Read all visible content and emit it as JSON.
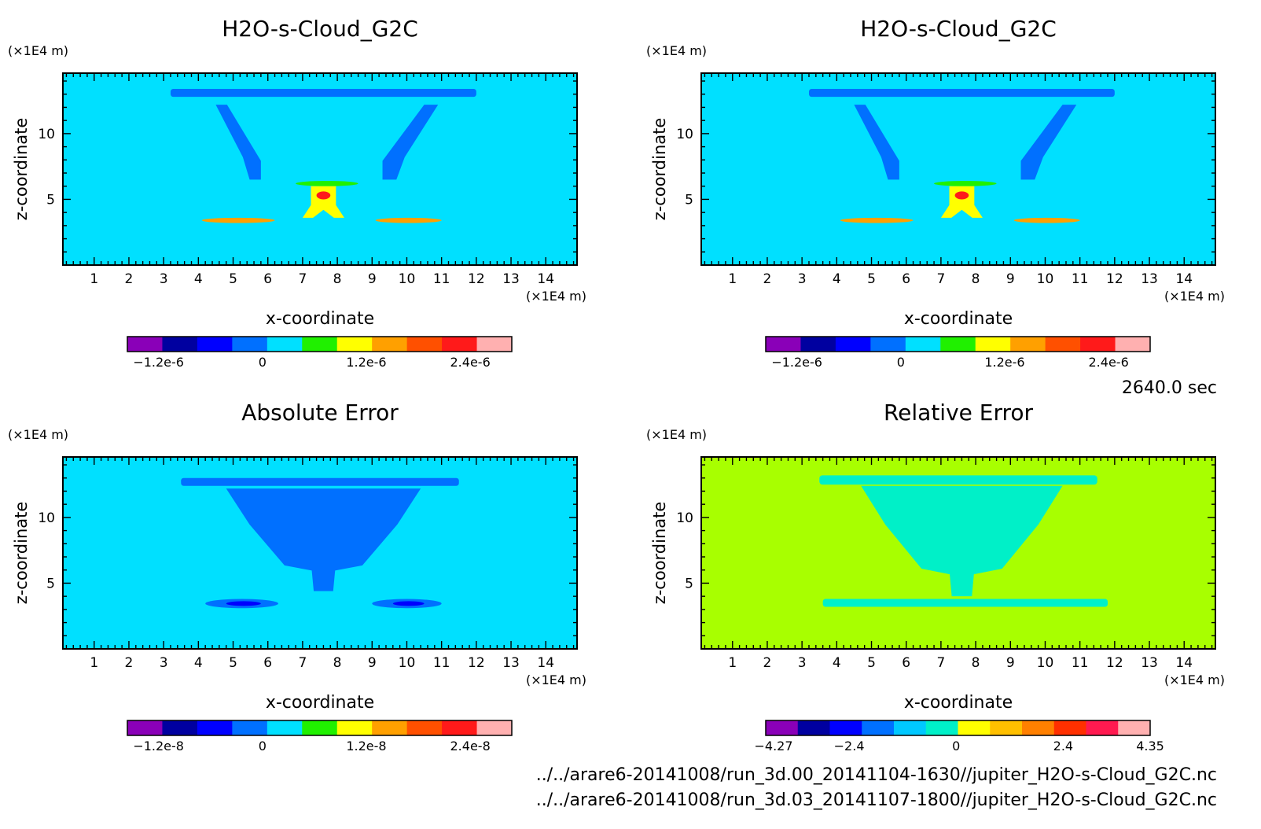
{
  "global": {
    "time_label": "2640.0 sec",
    "file_lines": [
      "../../arare6-20141008/run_3d.00_20141104-1630//jupiter_H2O-s-Cloud_G2C.nc",
      "../../arare6-20141008/run_3d.03_20141107-1800//jupiter_H2O-s-Cloud_G2C.nc"
    ]
  },
  "chart_data": [
    {
      "type": "heatmap",
      "title": "H2O-s-Cloud_G2C",
      "xlabel": "x-coordinate",
      "ylabel": "z-coordinate",
      "x_unit": "(x1E4 m)",
      "y_unit": "(x1E4 m)",
      "xlim": [
        0.1,
        14.9
      ],
      "ylim": [
        0,
        14.6
      ],
      "xticks": [
        1,
        2,
        3,
        4,
        5,
        6,
        7,
        8,
        9,
        10,
        11,
        12,
        13,
        14
      ],
      "yticks": [
        5,
        10
      ],
      "background_color": "#00e0ff",
      "colorbar": {
        "colors": [
          "#8a00b8",
          "#0000a0",
          "#0000ff",
          "#0070ff",
          "#00e0ff",
          "#20f000",
          "#ffff00",
          "#ffa000",
          "#ff5000",
          "#ff1a1a",
          "#ffb0b0"
        ],
        "tick_labels": [
          "-1.2e-6",
          "0",
          "1.2e-6",
          "2.4e-6"
        ],
        "tick_values": [
          -1.2e-06,
          0,
          1.2e-06,
          2.4e-06
        ],
        "range": [
          -1.56e-06,
          2.88e-06
        ]
      },
      "features": [
        {
          "color": "#0070ff",
          "shape": "anvil_bar",
          "x": [
            3.2,
            12.0
          ],
          "z": [
            12.8,
            13.4
          ]
        },
        {
          "color": "#0070ff",
          "shape": "left_arm",
          "x": [
            4.5,
            5.8
          ],
          "z": [
            6.5,
            12.2
          ]
        },
        {
          "color": "#0070ff",
          "shape": "right_arm",
          "x": [
            9.3,
            10.9
          ],
          "z": [
            6.5,
            12.2
          ]
        },
        {
          "color": "#20f000",
          "shape": "core_top",
          "x": [
            6.8,
            8.6
          ],
          "z": [
            6.0,
            6.4
          ]
        },
        {
          "color": "#ffff00",
          "shape": "core",
          "x": [
            7.0,
            8.2
          ],
          "z": [
            3.6,
            6.0
          ],
          "max": 2.9e-06
        },
        {
          "color": "#ff1a1a",
          "shape": "core_center",
          "x": [
            7.4,
            7.8
          ],
          "z": [
            5.0,
            5.6
          ]
        },
        {
          "color": "#ffa000",
          "shape": "left_lobe",
          "x": [
            4.1,
            6.2
          ],
          "z": [
            3.2,
            3.6
          ]
        },
        {
          "color": "#ffa000",
          "shape": "right_lobe",
          "x": [
            9.1,
            11.0
          ],
          "z": [
            3.2,
            3.6
          ]
        }
      ]
    },
    {
      "type": "heatmap",
      "title": "H2O-s-Cloud_G2C",
      "xlabel": "x-coordinate",
      "ylabel": "z-coordinate",
      "x_unit": "(x1E4 m)",
      "y_unit": "(x1E4 m)",
      "xlim": [
        0.1,
        14.9
      ],
      "ylim": [
        0,
        14.6
      ],
      "xticks": [
        1,
        2,
        3,
        4,
        5,
        6,
        7,
        8,
        9,
        10,
        11,
        12,
        13,
        14
      ],
      "yticks": [
        5,
        10
      ],
      "background_color": "#00e0ff",
      "colorbar": {
        "colors": [
          "#8a00b8",
          "#0000a0",
          "#0000ff",
          "#0070ff",
          "#00e0ff",
          "#20f000",
          "#ffff00",
          "#ffa000",
          "#ff5000",
          "#ff1a1a",
          "#ffb0b0"
        ],
        "tick_labels": [
          "-1.2e-6",
          "0",
          "1.2e-6",
          "2.4e-6"
        ],
        "tick_values": [
          -1.2e-06,
          0,
          1.2e-06,
          2.4e-06
        ],
        "range": [
          -1.56e-06,
          2.88e-06
        ]
      },
      "features": [
        {
          "color": "#0070ff",
          "shape": "anvil_bar",
          "x": [
            3.2,
            12.0
          ],
          "z": [
            12.8,
            13.4
          ]
        },
        {
          "color": "#0070ff",
          "shape": "left_arm",
          "x": [
            4.5,
            5.8
          ],
          "z": [
            6.5,
            12.2
          ]
        },
        {
          "color": "#0070ff",
          "shape": "right_arm",
          "x": [
            9.3,
            10.9
          ],
          "z": [
            6.5,
            12.2
          ]
        },
        {
          "color": "#20f000",
          "shape": "core_top",
          "x": [
            6.8,
            8.6
          ],
          "z": [
            6.0,
            6.4
          ]
        },
        {
          "color": "#ffff00",
          "shape": "core",
          "x": [
            7.0,
            8.2
          ],
          "z": [
            3.6,
            6.0
          ],
          "max": 2.9e-06
        },
        {
          "color": "#ff1a1a",
          "shape": "core_center",
          "x": [
            7.4,
            7.8
          ],
          "z": [
            5.0,
            5.6
          ]
        },
        {
          "color": "#ffa000",
          "shape": "left_lobe",
          "x": [
            4.1,
            6.2
          ],
          "z": [
            3.2,
            3.6
          ]
        },
        {
          "color": "#ffa000",
          "shape": "right_lobe",
          "x": [
            9.1,
            11.0
          ],
          "z": [
            3.2,
            3.6
          ]
        }
      ]
    },
    {
      "type": "heatmap",
      "title": "Absolute Error",
      "xlabel": "x-coordinate",
      "ylabel": "z-coordinate",
      "x_unit": "(x1E4 m)",
      "y_unit": "(x1E4 m)",
      "xlim": [
        0.1,
        14.9
      ],
      "ylim": [
        0,
        14.6
      ],
      "xticks": [
        1,
        2,
        3,
        4,
        5,
        6,
        7,
        8,
        9,
        10,
        11,
        12,
        13,
        14
      ],
      "yticks": [
        5,
        10
      ],
      "background_color": "#00e0ff",
      "colorbar": {
        "colors": [
          "#8a00b8",
          "#0000a0",
          "#0000ff",
          "#0070ff",
          "#00e0ff",
          "#20f000",
          "#ffff00",
          "#ffa000",
          "#ff5000",
          "#ff1a1a",
          "#ffb0b0"
        ],
        "tick_labels": [
          "-1.2e-8",
          "0",
          "1.2e-8",
          "2.4e-8"
        ],
        "tick_values": [
          -1.2e-08,
          0,
          1.2e-08,
          2.4e-08
        ],
        "range": [
          -1.56e-08,
          2.88e-08
        ]
      },
      "features": [
        {
          "color": "#0070ff",
          "shape": "anvil_bar",
          "x": [
            3.5,
            11.5
          ],
          "z": [
            12.4,
            13.0
          ]
        },
        {
          "color": "#0070ff",
          "shape": "funnel",
          "x": [
            4.8,
            10.4
          ],
          "z": [
            4.4,
            12.2
          ]
        },
        {
          "color": "#0070ff",
          "shape": "left_lobe",
          "x": [
            4.2,
            6.3
          ],
          "z": [
            3.1,
            3.8
          ]
        },
        {
          "color": "#0070ff",
          "shape": "right_lobe",
          "x": [
            9.0,
            11.0
          ],
          "z": [
            3.1,
            3.8
          ]
        },
        {
          "color": "#0000ff",
          "shape": "left_lobe_core",
          "x": [
            4.8,
            5.8
          ],
          "z": [
            3.3,
            3.6
          ]
        },
        {
          "color": "#0000ff",
          "shape": "right_lobe_core",
          "x": [
            9.6,
            10.5
          ],
          "z": [
            3.3,
            3.6
          ]
        }
      ]
    },
    {
      "type": "heatmap",
      "title": "Relative Error",
      "xlabel": "x-coordinate",
      "ylabel": "z-coordinate",
      "x_unit": "(x1E4 m)",
      "y_unit": "(x1E4 m)",
      "xlim": [
        0.1,
        14.9
      ],
      "ylim": [
        0,
        14.6
      ],
      "xticks": [
        1,
        2,
        3,
        4,
        5,
        6,
        7,
        8,
        9,
        10,
        11,
        12,
        13,
        14
      ],
      "yticks": [
        5,
        10
      ],
      "background_color": "#a8ff00",
      "colorbar": {
        "colors": [
          "#8a00b8",
          "#0000a0",
          "#0000ff",
          "#0070ff",
          "#00c8ff",
          "#00f0c8",
          "#ffff00",
          "#ffc000",
          "#ff8000",
          "#ff3000",
          "#ff1a50",
          "#ffb0b0"
        ],
        "tick_labels": [
          "-4.27",
          "-2.4",
          "0",
          "2.4",
          "4.35"
        ],
        "tick_values": [
          -4.27,
          -2.4,
          0,
          2.4,
          4.35
        ],
        "range": [
          -4.27,
          4.35
        ]
      },
      "features": [
        {
          "color": "#00f0c8",
          "shape": "funnel",
          "x": [
            4.7,
            10.5
          ],
          "z": [
            4.0,
            12.4
          ]
        },
        {
          "color": "#00f0c8",
          "shape": "base_band",
          "x": [
            3.6,
            11.8
          ],
          "z": [
            3.2,
            3.8
          ]
        },
        {
          "color": "#00f0c8",
          "shape": "anvil_bar",
          "x": [
            3.5,
            11.5
          ],
          "z": [
            12.5,
            13.2
          ]
        }
      ]
    }
  ]
}
